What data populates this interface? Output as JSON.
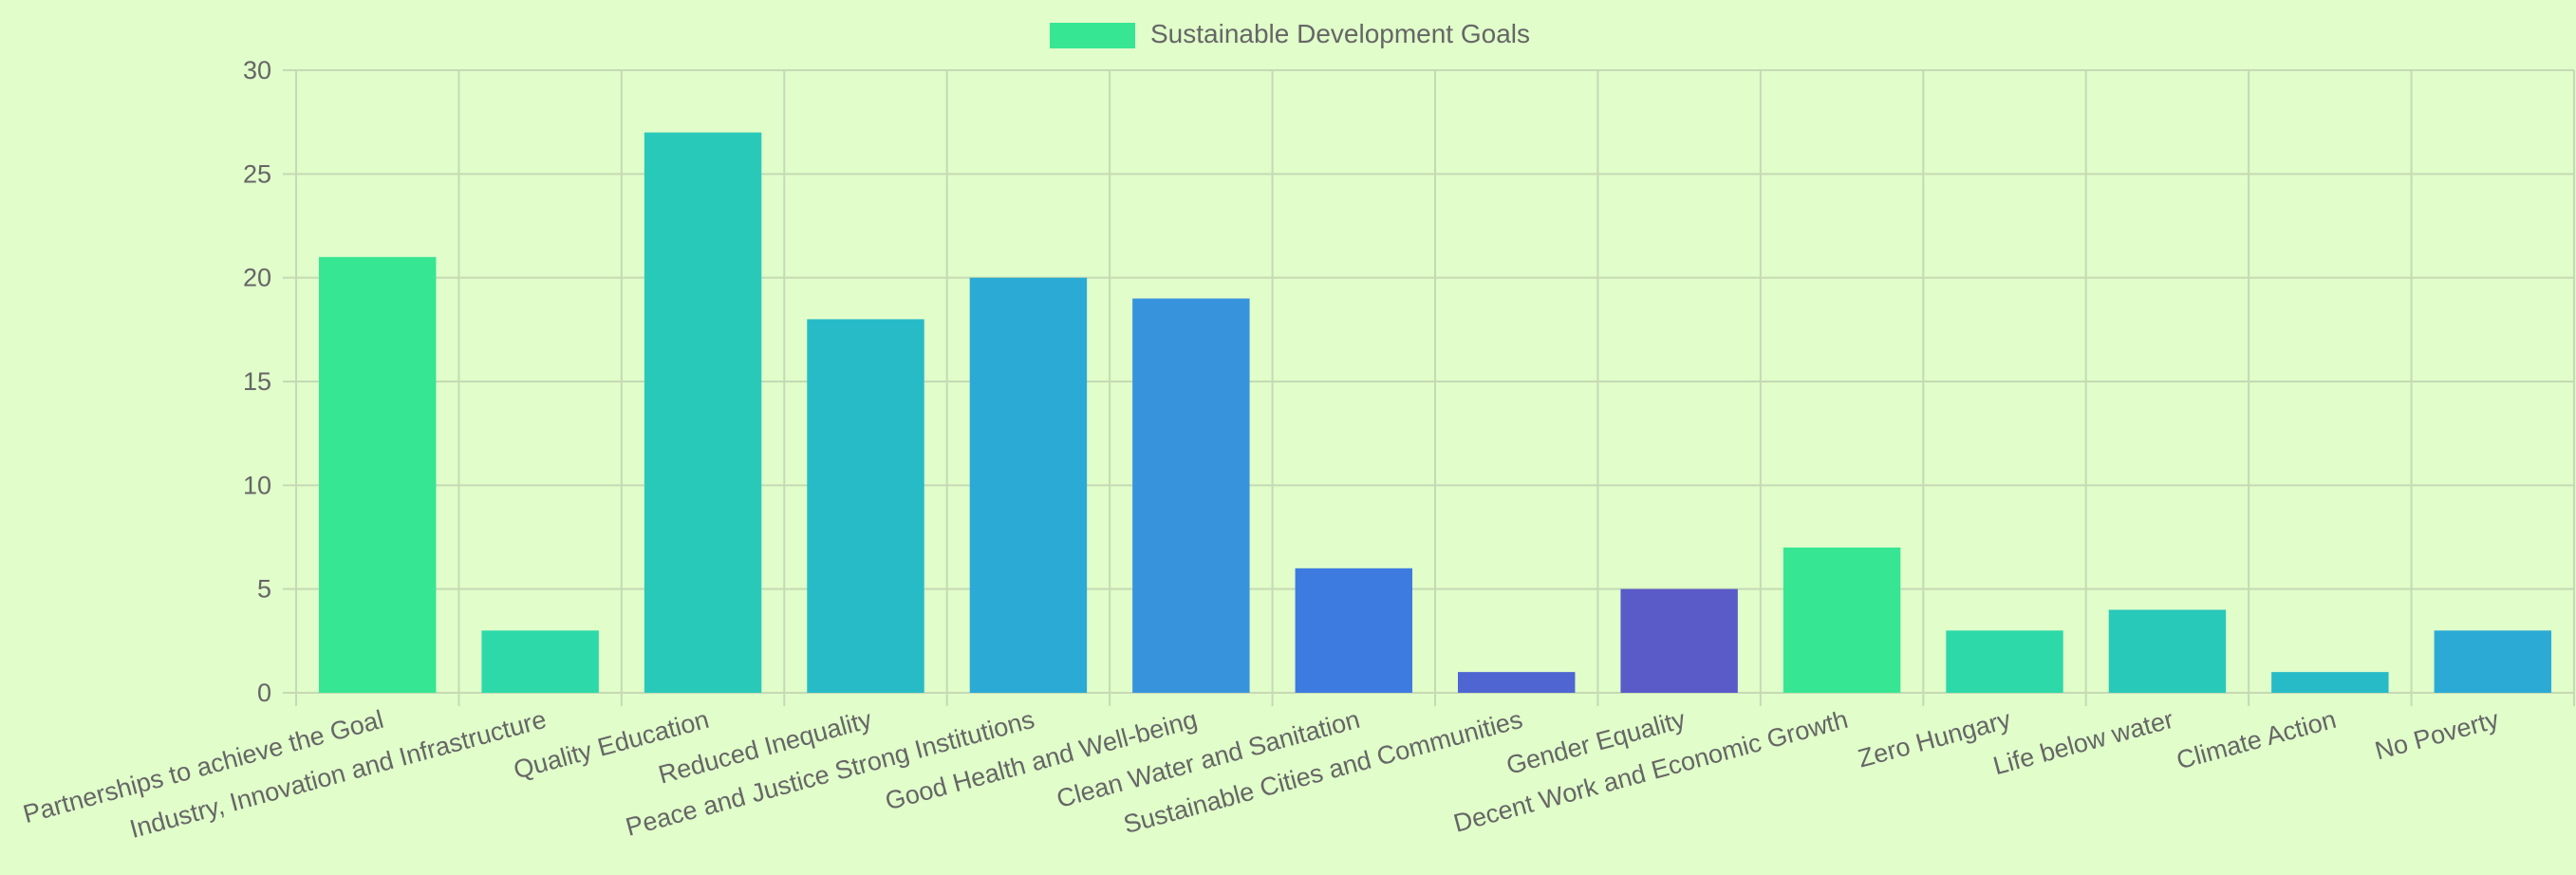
{
  "chart_data": {
    "type": "bar",
    "categories": [
      "Partnerships to achieve the Goal",
      "Industry, Innovation and Infrastructure",
      "Quality Education",
      "Reduced Inequality",
      "Peace and Justice Strong Institutions",
      "Good Health and Well-being",
      "Clean Water and Sanitation",
      "Sustainable Cities and Communities",
      "Gender Equality",
      "Decent Work and Economic Growth",
      "Zero Hungary",
      "Life below water",
      "Climate Action",
      "No Poverty"
    ],
    "series": [
      {
        "name": "Sustainable Development Goals",
        "values": [
          21,
          3,
          27,
          18,
          20,
          19,
          6,
          1,
          5,
          7,
          3,
          4,
          1,
          3
        ]
      }
    ],
    "bar_colors": [
      "#36e693",
      "#2dd9a8",
      "#29c9b9",
      "#27bbc7",
      "#2aaad4",
      "#3893dd",
      "#3d7be0",
      "#4e65d2",
      "#5a5ac8",
      "#36e693",
      "#2dd9a8",
      "#29c9b9",
      "#27bbc7",
      "#2aaad4"
    ],
    "legend_color": "#36e693",
    "yticks": [
      0,
      5,
      10,
      15,
      20,
      25,
      30
    ],
    "ylim": [
      0,
      30
    ],
    "grid": true,
    "legend_position": "top-center",
    "background": "#e0fdca"
  }
}
